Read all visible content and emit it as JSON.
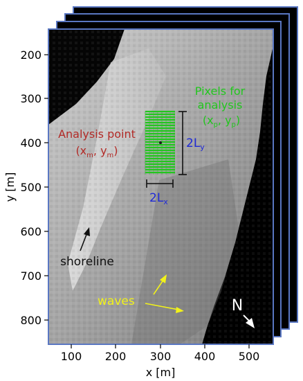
{
  "figure": {
    "y_axis_label": "y [m]",
    "x_axis_label": "x [m]",
    "y_ticks": [
      "200",
      "300",
      "400",
      "500",
      "600",
      "700",
      "800"
    ],
    "x_ticks": [
      "100",
      "200",
      "300",
      "400",
      "500"
    ]
  },
  "annotations": {
    "analysis_point_title": "Analysis point",
    "analysis_point_coords": {
      "open": "(x",
      "sub1": "m",
      "mid": ", y",
      "sub2": "m",
      "close": ")"
    },
    "pixels_title_line1": "Pixels for",
    "pixels_title_line2": "analysis",
    "pixels_coords": {
      "open": "(x",
      "sub1": "p",
      "mid": ", y",
      "sub2": "p",
      "close": ")"
    },
    "length_y": {
      "base": "2L",
      "sub": "y"
    },
    "length_x": {
      "base": "2L",
      "sub": "x"
    },
    "shoreline_label": "shoreline",
    "waves_label": "waves",
    "north_label": "N"
  },
  "colors": {
    "analysis_point": "#b22a26",
    "pixels": "#22c61e",
    "length_labels": "#1f2ad6",
    "waves": "#f2f21a",
    "shoreline": "#111111",
    "north": "#ffffff",
    "frame_border": "#5a77c2"
  }
}
